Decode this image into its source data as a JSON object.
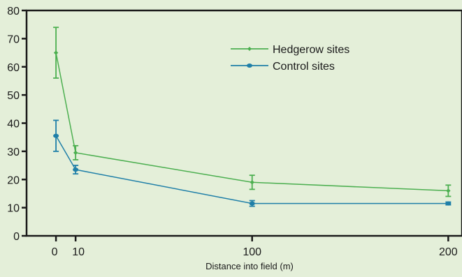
{
  "background_color": "#e4efd9",
  "chart_data": {
    "type": "line",
    "title": "",
    "xlabel": "Distance into field (m)",
    "ylabel": "",
    "x": [
      0,
      10,
      100,
      200
    ],
    "xticks": [
      0,
      10,
      100,
      200
    ],
    "xtick_labels": [
      "0",
      "10",
      "100",
      "200"
    ],
    "ylim": [
      0,
      80
    ],
    "yticks": [
      0,
      10,
      20,
      30,
      40,
      50,
      60,
      70,
      80
    ],
    "xlim": [
      -15,
      207
    ],
    "grid": false,
    "legend_position": "top-right",
    "series": [
      {
        "name": "Hedgerow sites",
        "color": "#4caf50",
        "marker": "diamond",
        "values": [
          65,
          29.5,
          19,
          16
        ],
        "error": [
          9,
          2.5,
          2.5,
          2
        ]
      },
      {
        "name": "Control sites",
        "color": "#1f7fa8",
        "marker": "circle",
        "values": [
          35.5,
          23.5,
          11.5,
          11.5
        ],
        "error": [
          5.5,
          1.5,
          1,
          0.5
        ]
      }
    ]
  }
}
